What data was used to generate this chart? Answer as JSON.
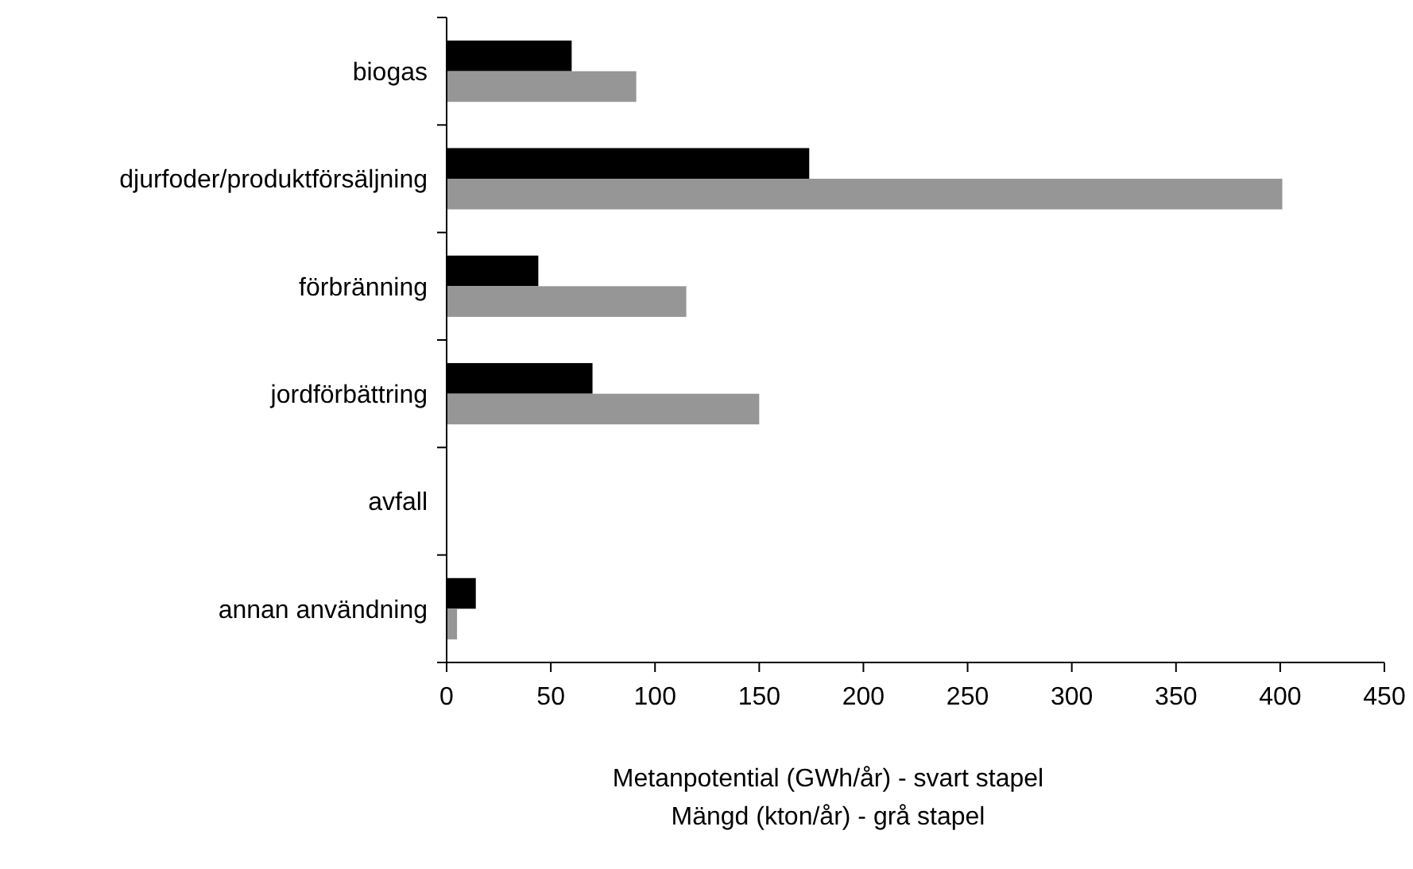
{
  "chart_data": {
    "type": "bar",
    "orientation": "horizontal",
    "categories": [
      "biogas",
      "djurfoder/produktförsäljning",
      "förbränning",
      "jordförbättring",
      "avfall",
      "annan användning"
    ],
    "series": [
      {
        "color": "#000000",
        "values": [
          60,
          174,
          44,
          70,
          0,
          14
        ]
      },
      {
        "color": "#969696",
        "values": [
          91,
          401,
          115,
          150,
          0,
          5
        ]
      }
    ],
    "xlim": [
      0,
      450
    ],
    "xticks": [
      0,
      50,
      100,
      150,
      200,
      250,
      300,
      350,
      400,
      450
    ],
    "xlabel": "Metanpotential (GWh/år) - svart stapel\nMängd (kton/år) - grå stapel",
    "grid": false
  }
}
